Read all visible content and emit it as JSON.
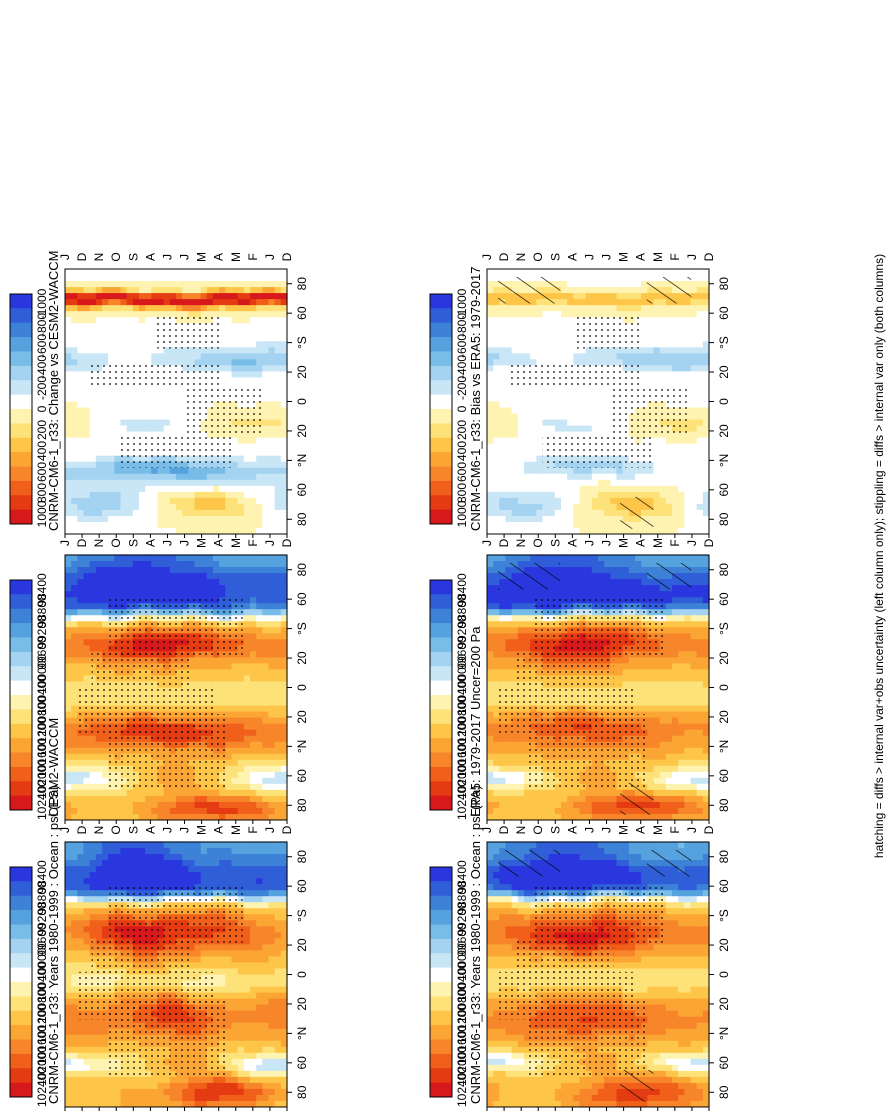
{
  "chart_data": [
    {
      "type": "heatmap",
      "panel": "top-left",
      "title": "CNRM-CM6-1_r33: Years 1980-1999 : Ocean : psl (Pa)",
      "x_ticks": [
        "D",
        "J",
        "F",
        "M",
        "A",
        "M",
        "J",
        "J",
        "A",
        "S",
        "O",
        "N",
        "D",
        "J"
      ],
      "y_ticks": [
        "80",
        "60",
        "°N",
        "20",
        "0",
        "20",
        "°S",
        "60",
        "80"
      ],
      "colorbar_ticks": [
        "102400",
        "102000",
        "101600",
        "101200",
        "100800",
        "100400",
        "100000",
        "99600",
        "99200",
        "98800",
        "98400"
      ],
      "legend": "right",
      "field": "psl"
    },
    {
      "type": "heatmap",
      "panel": "top-right",
      "title": "CNRM-CM6-1_r33: Years 1980-1999 : Ocean : psl (Pa)",
      "x_ticks": [
        "D",
        "J",
        "F",
        "M",
        "A",
        "M",
        "J",
        "J",
        "A",
        "S",
        "O",
        "N",
        "D",
        "J"
      ],
      "y_ticks": [
        "80",
        "60",
        "°N",
        "20",
        "0",
        "20",
        "°S",
        "60",
        "80"
      ],
      "colorbar_ticks": [
        "102400",
        "102000",
        "101600",
        "101200",
        "100800",
        "100400",
        "100000",
        "99600",
        "99200",
        "98800",
        "98400"
      ],
      "legend": "right",
      "field": "psl"
    },
    {
      "type": "heatmap",
      "panel": "middle-left",
      "title": "ERA5: 1979-2017 Uncer=200 Pa",
      "x_ticks": [
        "D",
        "J",
        "F",
        "M",
        "A",
        "M",
        "J",
        "J",
        "A",
        "S",
        "O",
        "N",
        "D",
        "J"
      ],
      "y_ticks": [
        "80",
        "60",
        "°N",
        "20",
        "0",
        "20",
        "°S",
        "60",
        "80"
      ],
      "colorbar_ticks": [
        "102400",
        "102000",
        "101600",
        "101200",
        "100800",
        "100400",
        "100000",
        "99600",
        "99200",
        "98800",
        "98400"
      ],
      "legend": "right",
      "field": "psl"
    },
    {
      "type": "heatmap",
      "panel": "middle-right",
      "title": "CESM2-WACCM",
      "x_ticks": [
        "D",
        "J",
        "F",
        "M",
        "A",
        "M",
        "J",
        "J",
        "A",
        "S",
        "O",
        "N",
        "D",
        "J"
      ],
      "y_ticks": [
        "80",
        "60",
        "°N",
        "20",
        "0",
        "20",
        "°S",
        "60",
        "80"
      ],
      "colorbar_ticks": [
        "102400",
        "102000",
        "101600",
        "101200",
        "100800",
        "100400",
        "100000",
        "99600",
        "99200",
        "98800",
        "98400"
      ],
      "legend": "right",
      "field": "psl"
    },
    {
      "type": "heatmap",
      "panel": "bottom-left",
      "title": "CNRM-CM6-1_r33: Bias vs ERA5: 1979-2017",
      "x_ticks": [
        "D",
        "J",
        "F",
        "M",
        "A",
        "M",
        "J",
        "J",
        "A",
        "S",
        "O",
        "N",
        "D",
        "J"
      ],
      "y_ticks": [
        "80",
        "60",
        "°N",
        "20",
        "0",
        "20",
        "°S",
        "60",
        "80"
      ],
      "colorbar_ticks": [
        "1000",
        "800",
        "600",
        "400",
        "200",
        "0",
        "-200",
        "-400",
        "-600",
        "-800",
        "-1000"
      ],
      "legend": "right",
      "field": "diff"
    },
    {
      "type": "heatmap",
      "panel": "bottom-right",
      "title": "CNRM-CM6-1_r33: Change vs CESM2-WACCM",
      "x_ticks": [
        "D",
        "J",
        "F",
        "M",
        "A",
        "M",
        "J",
        "J",
        "A",
        "S",
        "O",
        "N",
        "D",
        "J"
      ],
      "y_ticks": [
        "80",
        "60",
        "°N",
        "20",
        "0",
        "20",
        "°S",
        "60",
        "80"
      ],
      "colorbar_ticks": [
        "1000",
        "800",
        "600",
        "400",
        "200",
        "0",
        "-200",
        "-400",
        "-600",
        "-800",
        "-1000"
      ],
      "legend": "right",
      "field": "diff"
    }
  ],
  "footnote": "hatching = diffs > internal var+obs uncertainty (left column only); stippling = diffs > internal var only (both columns)",
  "colors": {
    "scale": [
      "#d7191c",
      "#e53b12",
      "#f0601b",
      "#f7852a",
      "#fba535",
      "#fdc649",
      "#fde27a",
      "#fef3b0",
      "#ffffff",
      "#c9e6f7",
      "#a3d3f1",
      "#78bde8",
      "#55a2df",
      "#3d82d6",
      "#2f5ed8",
      "#2b37de"
    ]
  }
}
